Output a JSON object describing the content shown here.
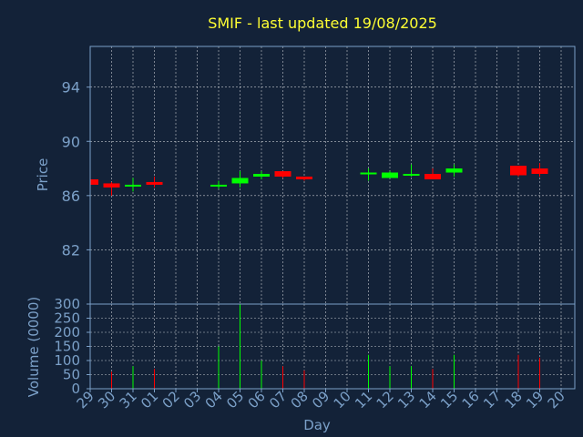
{
  "chart_data": {
    "type": "candlestick",
    "title": "SMIF - last updated 19/08/2025",
    "xlabel": "Day",
    "grid": true,
    "colors": {
      "background": "#132238",
      "title": "#ffff33",
      "labels": "#7ba0c8",
      "grid": "#ffffff",
      "frame": "#7ba0c8",
      "up": "#00ff00",
      "down": "#ff0000"
    },
    "x_ticks": [
      "29",
      "30",
      "31",
      "01",
      "02",
      "03",
      "04",
      "05",
      "06",
      "07",
      "08",
      "09",
      "10",
      "11",
      "12",
      "13",
      "14",
      "15",
      "16",
      "17",
      "18",
      "19",
      "20"
    ],
    "price_panel": {
      "ylabel": "Price",
      "ylim": [
        78,
        97
      ],
      "y_ticks": [
        82,
        86,
        90,
        94
      ]
    },
    "volume_panel": {
      "ylabel": "Volume (0000)",
      "ylim": [
        0,
        300
      ],
      "y_ticks": [
        0,
        50,
        100,
        150,
        200,
        250,
        300
      ]
    },
    "candles": [
      {
        "day": "29",
        "open": 87.2,
        "high": 87.2,
        "low": 86.8,
        "close": 86.8,
        "volume": 0
      },
      {
        "day": "30",
        "open": 86.9,
        "high": 87.0,
        "low": 86.0,
        "close": 86.6,
        "volume": 60
      },
      {
        "day": "31",
        "open": 86.7,
        "high": 87.3,
        "low": 86.3,
        "close": 86.8,
        "volume": 80
      },
      {
        "day": "01",
        "open": 87.0,
        "high": 87.4,
        "low": 86.6,
        "close": 86.8,
        "volume": 70
      },
      {
        "day": "04",
        "open": 86.7,
        "high": 87.1,
        "low": 86.5,
        "close": 86.8,
        "volume": 150
      },
      {
        "day": "05",
        "open": 86.9,
        "high": 87.8,
        "low": 86.6,
        "close": 87.3,
        "volume": 300
      },
      {
        "day": "06",
        "open": 87.4,
        "high": 87.8,
        "low": 87.2,
        "close": 87.6,
        "volume": 100
      },
      {
        "day": "07",
        "open": 87.8,
        "high": 87.8,
        "low": 87.3,
        "close": 87.4,
        "volume": 80
      },
      {
        "day": "08",
        "open": 87.4,
        "high": 87.4,
        "low": 87.1,
        "close": 87.2,
        "volume": 65
      },
      {
        "day": "11",
        "open": 87.6,
        "high": 88.0,
        "low": 87.1,
        "close": 87.7,
        "volume": 120
      },
      {
        "day": "12",
        "open": 87.3,
        "high": 87.8,
        "low": 87.3,
        "close": 87.7,
        "volume": 80
      },
      {
        "day": "13",
        "open": 87.5,
        "high": 88.3,
        "low": 87.4,
        "close": 87.6,
        "volume": 80
      },
      {
        "day": "14",
        "open": 87.6,
        "high": 88.0,
        "low": 87.2,
        "close": 87.2,
        "volume": 70
      },
      {
        "day": "15",
        "open": 87.7,
        "high": 88.3,
        "low": 87.4,
        "close": 88.0,
        "volume": 120
      },
      {
        "day": "18",
        "open": 88.2,
        "high": 88.2,
        "low": 87.4,
        "close": 87.5,
        "volume": 120
      },
      {
        "day": "19",
        "open": 88.0,
        "high": 88.4,
        "low": 87.4,
        "close": 87.6,
        "volume": 110
      }
    ]
  }
}
